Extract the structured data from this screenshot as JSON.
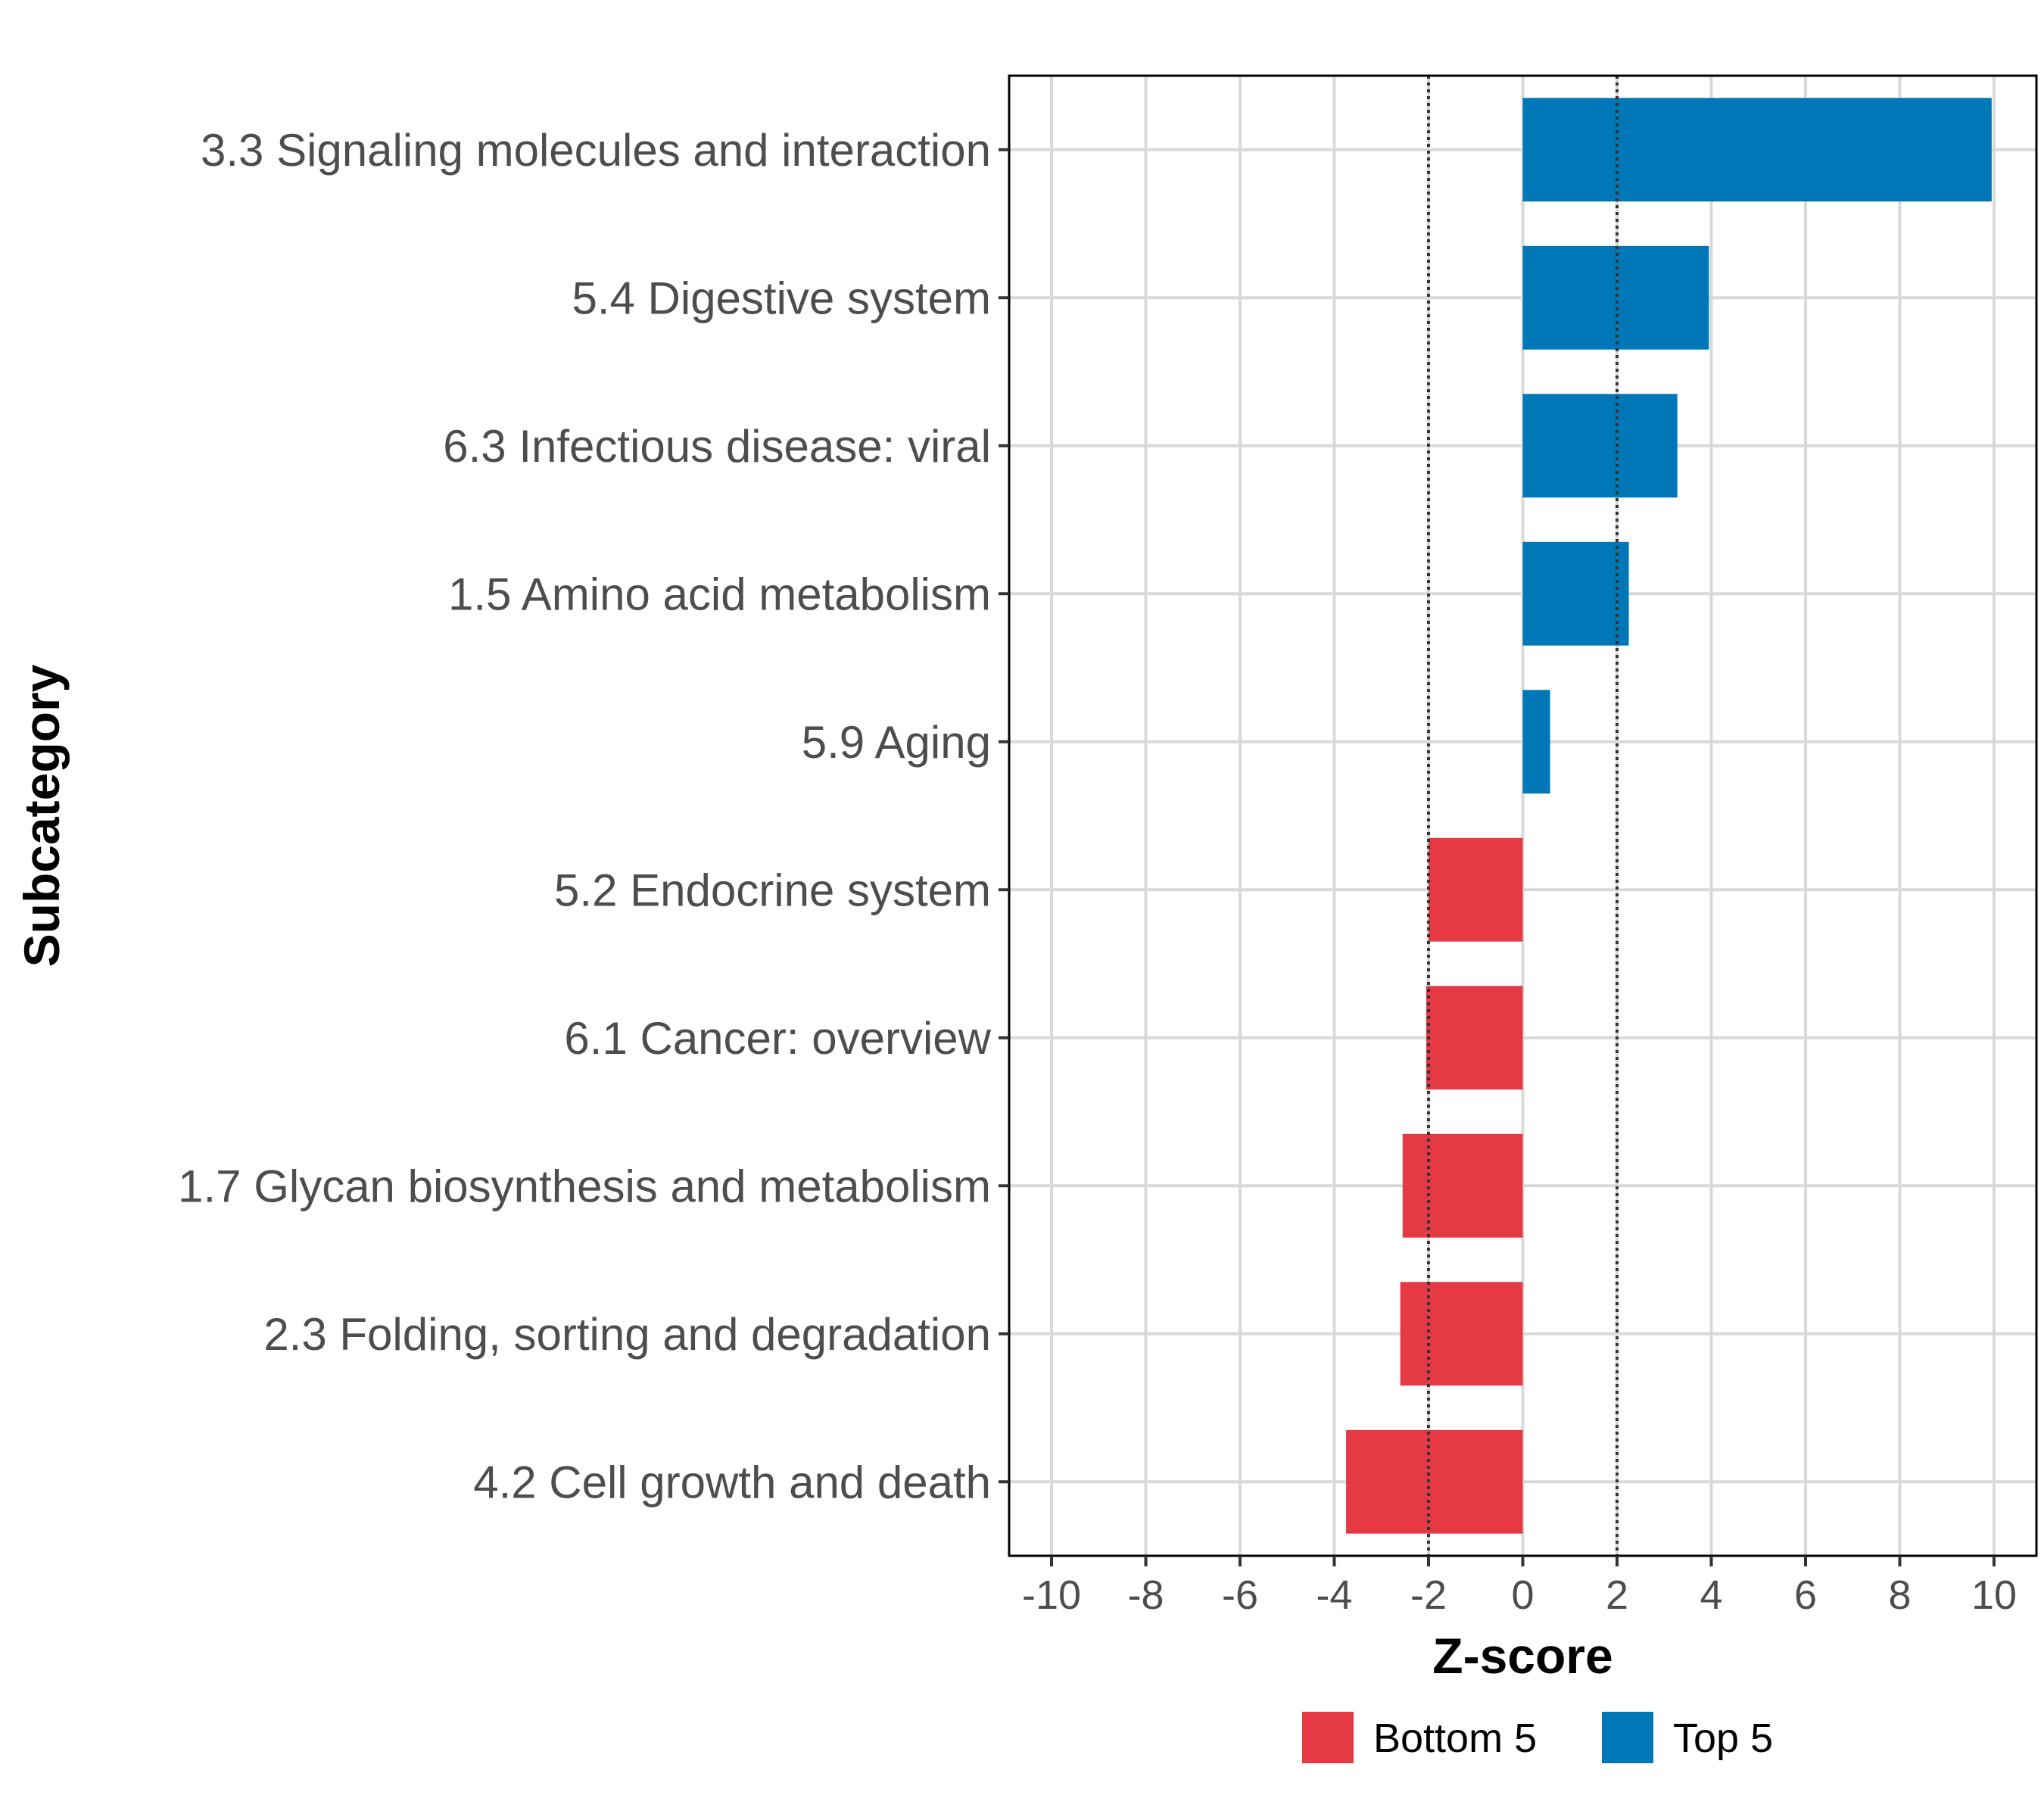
{
  "chart_data": {
    "type": "bar",
    "orientation": "horizontal",
    "xlabel": "Z-score",
    "ylabel": "Subcategory",
    "xlim": [
      -10.9,
      10.9
    ],
    "xticks": [
      -10,
      -8,
      -6,
      -4,
      -2,
      0,
      2,
      4,
      6,
      8,
      10
    ],
    "xtick_labels": [
      "-10",
      "-8",
      "-6",
      "-4",
      "-2",
      "0",
      "2",
      "4",
      "6",
      "8",
      "10"
    ],
    "reference_lines": [
      -2,
      2
    ],
    "grid": true,
    "categories": [
      "3.3 Signaling molecules and interaction",
      "5.4 Digestive system",
      "6.3 Infectious disease: viral",
      "1.5 Amino acid metabolism",
      "5.9 Aging",
      "5.2 Endocrine system",
      "6.1 Cancer: overview",
      "1.7 Glycan biosynthesis and metabolism",
      "2.3 Folding, sorting and degradation",
      "4.2 Cell growth and death"
    ],
    "values": [
      9.95,
      3.95,
      3.28,
      2.25,
      0.58,
      -2.0,
      -2.05,
      -2.55,
      -2.6,
      -3.75
    ],
    "groups": [
      "Top 5",
      "Top 5",
      "Top 5",
      "Top 5",
      "Top 5",
      "Bottom 5",
      "Bottom 5",
      "Bottom 5",
      "Bottom 5",
      "Bottom 5"
    ],
    "legend": [
      {
        "name": "Bottom 5",
        "color": "#E63946"
      },
      {
        "name": "Top 5",
        "color": "#0077B6"
      }
    ],
    "legend_position": "bottom"
  }
}
